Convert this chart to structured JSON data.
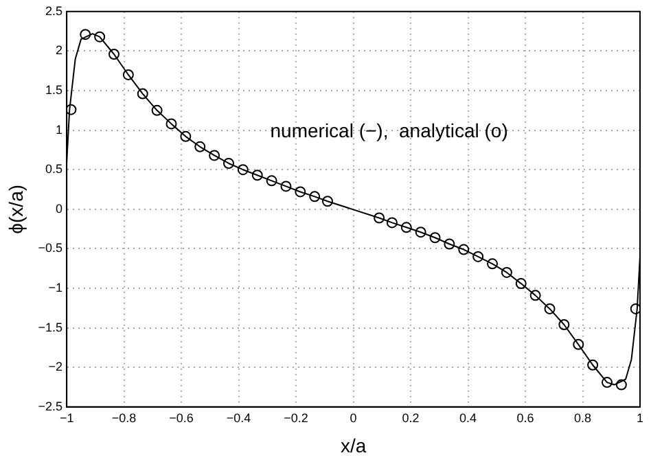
{
  "chart_data": {
    "type": "line",
    "xlabel": "x/a",
    "ylabel": "ϕ(x/a)",
    "annotations": [
      "numerical (−),  analytical (o)"
    ],
    "xlim": [
      -1,
      1
    ],
    "ylim": [
      -2.5,
      2.5
    ],
    "xticks": [
      -1,
      -0.8,
      -0.6,
      -0.4,
      -0.2,
      0,
      0.2,
      0.4,
      0.6,
      0.8,
      1
    ],
    "yticks": [
      -2.5,
      -2,
      -1.5,
      -1,
      -0.5,
      0,
      0.5,
      1,
      1.5,
      2,
      2.5
    ],
    "grid": true,
    "series": [
      {
        "type": "line",
        "color": "#000000",
        "marker": "none",
        "line_style": "solid",
        "x": [
          -1,
          -0.99,
          -0.97,
          -0.95,
          -0.91,
          -0.885,
          -0.835,
          -0.785,
          -0.735,
          -0.685,
          -0.635,
          -0.585,
          -0.535,
          -0.485,
          -0.435,
          -0.385,
          -0.335,
          -0.285,
          -0.235,
          -0.185,
          -0.135,
          -0.09,
          0.09,
          0.135,
          0.185,
          0.235,
          0.285,
          0.335,
          0.385,
          0.435,
          0.485,
          0.535,
          0.585,
          0.635,
          0.685,
          0.735,
          0.785,
          0.835,
          0.885,
          0.91,
          0.95,
          0.97,
          0.99,
          1
        ],
        "values": [
          0.6,
          1.26,
          1.9,
          2.15,
          2.22,
          2.18,
          1.96,
          1.7,
          1.46,
          1.25,
          1.08,
          0.92,
          0.79,
          0.68,
          0.58,
          0.5,
          0.43,
          0.36,
          0.29,
          0.22,
          0.16,
          0.1,
          -0.11,
          -0.17,
          -0.23,
          -0.29,
          -0.36,
          -0.44,
          -0.51,
          -0.6,
          -0.69,
          -0.8,
          -0.94,
          -1.09,
          -1.26,
          -1.46,
          -1.71,
          -1.97,
          -2.19,
          -2.22,
          -2.15,
          -1.9,
          -1.26,
          -0.6
        ]
      },
      {
        "type": "scatter",
        "color": "#000000",
        "marker": "circle",
        "x": [
          -0.985,
          -0.935,
          -0.885,
          -0.835,
          -0.785,
          -0.735,
          -0.685,
          -0.635,
          -0.585,
          -0.535,
          -0.485,
          -0.435,
          -0.385,
          -0.335,
          -0.285,
          -0.235,
          -0.185,
          -0.135,
          -0.09,
          0.09,
          0.135,
          0.185,
          0.235,
          0.285,
          0.335,
          0.385,
          0.435,
          0.485,
          0.535,
          0.585,
          0.635,
          0.685,
          0.735,
          0.785,
          0.835,
          0.885,
          0.935,
          0.985
        ],
        "values": [
          1.26,
          2.21,
          2.18,
          1.96,
          1.7,
          1.46,
          1.25,
          1.08,
          0.92,
          0.79,
          0.68,
          0.58,
          0.5,
          0.43,
          0.36,
          0.29,
          0.22,
          0.16,
          0.1,
          -0.11,
          -0.17,
          -0.23,
          -0.29,
          -0.36,
          -0.44,
          -0.51,
          -0.6,
          -0.69,
          -0.8,
          -0.94,
          -1.09,
          -1.26,
          -1.46,
          -1.71,
          -1.97,
          -2.19,
          -2.22,
          -1.26
        ]
      }
    ]
  }
}
